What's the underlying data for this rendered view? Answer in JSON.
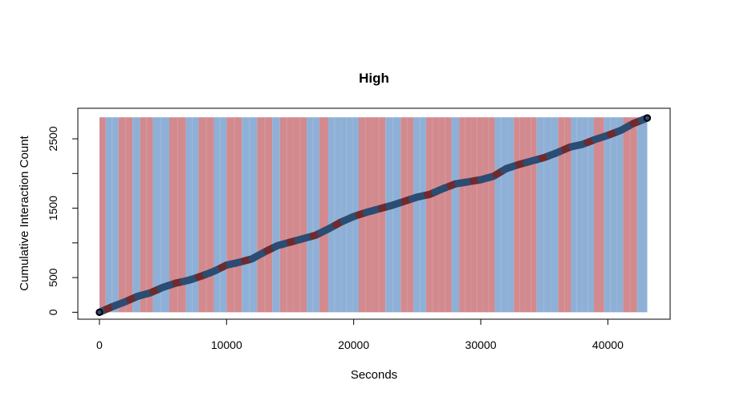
{
  "chart_data": {
    "type": "scatter",
    "title": "High",
    "xlabel": "Seconds",
    "ylabel": "Cumulative Interaction Count",
    "xlim": [
      -1700,
      44900
    ],
    "ylim": [
      -100,
      2940
    ],
    "x_ticks": [
      0,
      10000,
      20000,
      30000,
      40000
    ],
    "x_tick_labels": [
      "0",
      "10000",
      "20000",
      "30000",
      "40000"
    ],
    "y_ticks": [
      0,
      500,
      1500,
      2500
    ],
    "y_tick_labels": [
      "0",
      "500",
      "1500",
      "2500"
    ],
    "y_tick_marks": [
      0,
      500,
      1000,
      1500,
      2000,
      2500
    ],
    "background_bands": {
      "y_top": 2810,
      "colors": {
        "blue": "#8fb0d6",
        "red": "#d28a8f"
      },
      "segments": [
        [
          0,
          500,
          "red"
        ],
        [
          500,
          1500,
          "blue"
        ],
        [
          1500,
          2600,
          "red"
        ],
        [
          2600,
          3200,
          "blue"
        ],
        [
          3200,
          4200,
          "red"
        ],
        [
          4200,
          5500,
          "blue"
        ],
        [
          5500,
          6800,
          "red"
        ],
        [
          6800,
          7800,
          "blue"
        ],
        [
          7800,
          9000,
          "red"
        ],
        [
          9000,
          10000,
          "blue"
        ],
        [
          10000,
          11200,
          "red"
        ],
        [
          11200,
          12400,
          "blue"
        ],
        [
          12400,
          13600,
          "red"
        ],
        [
          13600,
          14200,
          "blue"
        ],
        [
          14200,
          16300,
          "red"
        ],
        [
          16300,
          17300,
          "blue"
        ],
        [
          17300,
          18000,
          "red"
        ],
        [
          18000,
          20400,
          "blue"
        ],
        [
          20400,
          22500,
          "red"
        ],
        [
          22500,
          23700,
          "blue"
        ],
        [
          23700,
          24700,
          "red"
        ],
        [
          24700,
          25700,
          "blue"
        ],
        [
          25700,
          27700,
          "red"
        ],
        [
          27700,
          28300,
          "blue"
        ],
        [
          28300,
          31100,
          "red"
        ],
        [
          31100,
          32600,
          "blue"
        ],
        [
          32600,
          34400,
          "red"
        ],
        [
          34400,
          36100,
          "blue"
        ],
        [
          36100,
          37100,
          "red"
        ],
        [
          37100,
          38900,
          "blue"
        ],
        [
          38900,
          39700,
          "red"
        ],
        [
          39700,
          41200,
          "blue"
        ],
        [
          41200,
          42300,
          "red"
        ],
        [
          42300,
          43100,
          "blue"
        ]
      ]
    },
    "series": [
      {
        "points_colors": {
          "main": "#2c4d73",
          "accent": "#6e2a2d"
        },
        "x": [
          0,
          1000,
          2000,
          3000,
          4000,
          5000,
          6000,
          7000,
          8000,
          9000,
          10000,
          11000,
          12000,
          13000,
          14000,
          15000,
          16000,
          17000,
          18000,
          19000,
          20000,
          21000,
          22000,
          23000,
          24000,
          25000,
          26000,
          27000,
          28000,
          29000,
          30000,
          31000,
          32000,
          33000,
          34000,
          35000,
          36000,
          37000,
          38000,
          39000,
          40000,
          41000,
          42000,
          43100
        ],
        "y": [
          0,
          80,
          150,
          230,
          280,
          360,
          420,
          460,
          520,
          590,
          680,
          720,
          770,
          870,
          960,
          1010,
          1060,
          1110,
          1200,
          1300,
          1380,
          1440,
          1490,
          1540,
          1600,
          1660,
          1700,
          1780,
          1850,
          1880,
          1910,
          1960,
          2070,
          2130,
          2180,
          2230,
          2300,
          2380,
          2420,
          2490,
          2550,
          2620,
          2720,
          2800
        ]
      }
    ]
  }
}
